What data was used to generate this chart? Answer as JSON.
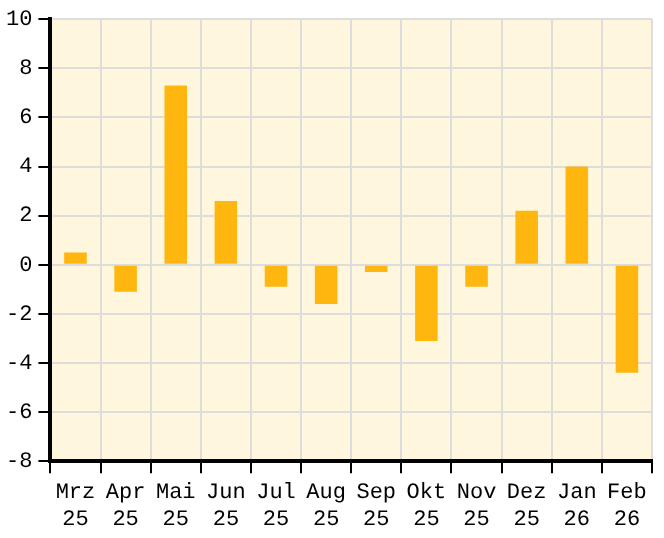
{
  "chart_data": {
    "type": "bar",
    "categories": [
      "Mrz\n25",
      "Apr\n25",
      "Mai\n25",
      "Jun\n25",
      "Jul\n25",
      "Aug\n25",
      "Sep\n25",
      "Okt\n25",
      "Nov\n25",
      "Dez\n25",
      "Jan\n26",
      "Feb\n26"
    ],
    "values": [
      0.5,
      -1.1,
      7.3,
      2.6,
      -0.9,
      -1.6,
      -0.3,
      -3.1,
      -0.9,
      2.2,
      4.0,
      -4.4
    ],
    "color": "#ffb60f",
    "ylim": [
      -8,
      10
    ],
    "yticks": [
      -8,
      -6,
      -4,
      -2,
      0,
      2,
      4,
      6,
      8,
      10
    ],
    "grid": true
  }
}
